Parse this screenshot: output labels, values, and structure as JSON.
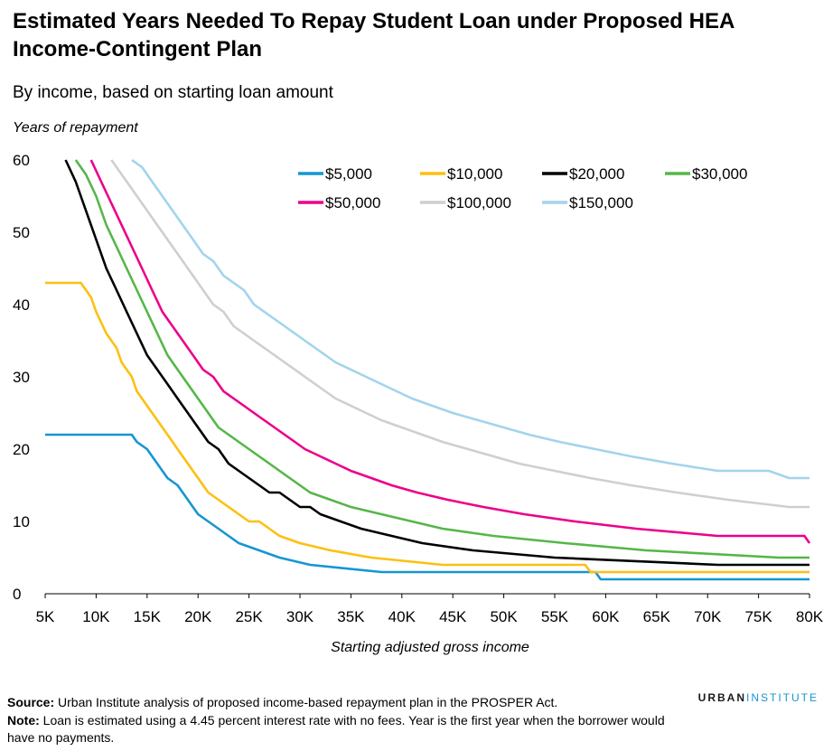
{
  "header": {
    "title": "Estimated Years Needed To Repay Student Loan under Proposed HEA Income-Contingent Plan",
    "subtitle": "By income, based on starting loan amount"
  },
  "footer": {
    "source_label": "Source:",
    "source_text": " Urban Institute analysis of proposed income-based repayment plan in the PROSPER Act.",
    "note_label": "Note:",
    "note_text": " Loan is estimated using a 4.45 percent interest rate with no fees. Year is the first year when the borrower would have no payments.",
    "brand_part1": "URBAN",
    "brand_part2": "INSTITUTE"
  },
  "chart_data": {
    "type": "line",
    "title": "Estimated Years Needed To Repay Student Loan under Proposed HEA Income-Contingent Plan",
    "subtitle": "By income, based on starting loan amount",
    "xlabel": "Starting adjusted gross income",
    "ylabel": "Years of repayment",
    "xlim": [
      5000,
      80000
    ],
    "ylim": [
      0,
      60
    ],
    "x_ticks": [
      5000,
      10000,
      15000,
      20000,
      25000,
      30000,
      35000,
      40000,
      45000,
      50000,
      55000,
      60000,
      65000,
      70000,
      75000,
      80000
    ],
    "x_tick_labels": [
      "5K",
      "10K",
      "15K",
      "20K",
      "25K",
      "30K",
      "35K",
      "40K",
      "45K",
      "50K",
      "55K",
      "60K",
      "65K",
      "70K",
      "75K",
      "80K"
    ],
    "y_ticks": [
      0,
      10,
      20,
      30,
      40,
      50,
      60
    ],
    "y_tick_labels": [
      "0",
      "10",
      "20",
      "30",
      "40",
      "50",
      "60"
    ],
    "grid": false,
    "legend_position": "top-right",
    "series": [
      {
        "name": "$5,000",
        "color": "#1696d2",
        "points": [
          [
            5000,
            22
          ],
          [
            13500,
            22
          ],
          [
            14000,
            21
          ],
          [
            15000,
            20
          ],
          [
            16000,
            18
          ],
          [
            17000,
            16
          ],
          [
            18000,
            15
          ],
          [
            19000,
            13
          ],
          [
            20000,
            11
          ],
          [
            21000,
            10
          ],
          [
            22000,
            9
          ],
          [
            23000,
            8
          ],
          [
            24000,
            7
          ],
          [
            26000,
            6
          ],
          [
            28000,
            5
          ],
          [
            31000,
            4
          ],
          [
            38000,
            3
          ],
          [
            59000,
            3
          ],
          [
            59500,
            2
          ],
          [
            80000,
            2
          ]
        ]
      },
      {
        "name": "$10,000",
        "color": "#fdbf11",
        "points": [
          [
            5000,
            43
          ],
          [
            8500,
            43
          ],
          [
            9500,
            41
          ],
          [
            10000,
            39
          ],
          [
            11000,
            36
          ],
          [
            12000,
            34
          ],
          [
            12500,
            32
          ],
          [
            13500,
            30
          ],
          [
            14000,
            28
          ],
          [
            15000,
            26
          ],
          [
            16000,
            24
          ],
          [
            17000,
            22
          ],
          [
            18000,
            20
          ],
          [
            19000,
            18
          ],
          [
            20000,
            16
          ],
          [
            21000,
            14
          ],
          [
            22000,
            13
          ],
          [
            23000,
            12
          ],
          [
            24000,
            11
          ],
          [
            25000,
            10
          ],
          [
            26000,
            10
          ],
          [
            27000,
            9
          ],
          [
            28000,
            8
          ],
          [
            30000,
            7
          ],
          [
            33000,
            6
          ],
          [
            37000,
            5
          ],
          [
            44000,
            4
          ],
          [
            58000,
            4
          ],
          [
            58500,
            3
          ],
          [
            80000,
            3
          ]
        ]
      },
      {
        "name": "$20,000",
        "color": "#000000",
        "points": [
          [
            7000,
            60
          ],
          [
            8000,
            57
          ],
          [
            9000,
            53
          ],
          [
            10000,
            49
          ],
          [
            11000,
            45
          ],
          [
            12000,
            42
          ],
          [
            13000,
            39
          ],
          [
            14000,
            36
          ],
          [
            15000,
            33
          ],
          [
            16000,
            31
          ],
          [
            17000,
            29
          ],
          [
            18000,
            27
          ],
          [
            19000,
            25
          ],
          [
            20000,
            23
          ],
          [
            21000,
            21
          ],
          [
            22000,
            20
          ],
          [
            23000,
            18
          ],
          [
            24000,
            17
          ],
          [
            25000,
            16
          ],
          [
            26000,
            15
          ],
          [
            27000,
            14
          ],
          [
            28000,
            14
          ],
          [
            29000,
            13
          ],
          [
            30000,
            12
          ],
          [
            31000,
            12
          ],
          [
            32000,
            11
          ],
          [
            34000,
            10
          ],
          [
            36000,
            9
          ],
          [
            39000,
            8
          ],
          [
            42000,
            7
          ],
          [
            47000,
            6
          ],
          [
            55000,
            5
          ],
          [
            71000,
            4
          ],
          [
            80000,
            4
          ]
        ]
      },
      {
        "name": "$30,000",
        "color": "#55b748",
        "points": [
          [
            8000,
            60
          ],
          [
            9000,
            58
          ],
          [
            10000,
            55
          ],
          [
            11000,
            51
          ],
          [
            12000,
            48
          ],
          [
            13000,
            45
          ],
          [
            14000,
            42
          ],
          [
            15000,
            39
          ],
          [
            16000,
            36
          ],
          [
            17000,
            33
          ],
          [
            18000,
            31
          ],
          [
            19000,
            29
          ],
          [
            20000,
            27
          ],
          [
            21000,
            25
          ],
          [
            22000,
            23
          ],
          [
            23000,
            22
          ],
          [
            24000,
            21
          ],
          [
            25000,
            20
          ],
          [
            26000,
            19
          ],
          [
            27000,
            18
          ],
          [
            28000,
            17
          ],
          [
            29000,
            16
          ],
          [
            30000,
            15
          ],
          [
            31000,
            14
          ],
          [
            33000,
            13
          ],
          [
            35000,
            12
          ],
          [
            38000,
            11
          ],
          [
            41000,
            10
          ],
          [
            44000,
            9
          ],
          [
            49000,
            8
          ],
          [
            56000,
            7
          ],
          [
            64000,
            6
          ],
          [
            77000,
            5
          ],
          [
            80000,
            5
          ]
        ]
      },
      {
        "name": "$50,000",
        "color": "#ec008b",
        "points": [
          [
            9500,
            60
          ],
          [
            10500,
            57
          ],
          [
            11500,
            54
          ],
          [
            12500,
            51
          ],
          [
            13500,
            48
          ],
          [
            14500,
            45
          ],
          [
            15500,
            42
          ],
          [
            16500,
            39
          ],
          [
            17500,
            37
          ],
          [
            18500,
            35
          ],
          [
            19500,
            33
          ],
          [
            20500,
            31
          ],
          [
            21500,
            30
          ],
          [
            22500,
            28
          ],
          [
            23500,
            27
          ],
          [
            24500,
            26
          ],
          [
            25500,
            25
          ],
          [
            26500,
            24
          ],
          [
            27500,
            23
          ],
          [
            28500,
            22
          ],
          [
            29500,
            21
          ],
          [
            30500,
            20
          ],
          [
            32000,
            19
          ],
          [
            33500,
            18
          ],
          [
            35000,
            17
          ],
          [
            37000,
            16
          ],
          [
            39000,
            15
          ],
          [
            41500,
            14
          ],
          [
            44500,
            13
          ],
          [
            48000,
            12
          ],
          [
            52000,
            11
          ],
          [
            57000,
            10
          ],
          [
            63000,
            9
          ],
          [
            71000,
            8
          ],
          [
            79500,
            8
          ],
          [
            80000,
            7
          ]
        ]
      },
      {
        "name": "$100,000",
        "color": "#cfcfcf",
        "points": [
          [
            11500,
            60
          ],
          [
            12500,
            58
          ],
          [
            13500,
            56
          ],
          [
            14500,
            54
          ],
          [
            15500,
            52
          ],
          [
            16500,
            50
          ],
          [
            17500,
            48
          ],
          [
            18500,
            46
          ],
          [
            19500,
            44
          ],
          [
            20500,
            42
          ],
          [
            21500,
            40
          ],
          [
            22500,
            39
          ],
          [
            23500,
            37
          ],
          [
            24500,
            36
          ],
          [
            25500,
            35
          ],
          [
            26500,
            34
          ],
          [
            27500,
            33
          ],
          [
            28500,
            32
          ],
          [
            29500,
            31
          ],
          [
            30500,
            30
          ],
          [
            31500,
            29
          ],
          [
            32500,
            28
          ],
          [
            33500,
            27
          ],
          [
            35000,
            26
          ],
          [
            36500,
            25
          ],
          [
            38000,
            24
          ],
          [
            40000,
            23
          ],
          [
            42000,
            22
          ],
          [
            44000,
            21
          ],
          [
            46500,
            20
          ],
          [
            49000,
            19
          ],
          [
            51500,
            18
          ],
          [
            55000,
            17
          ],
          [
            58500,
            16
          ],
          [
            62500,
            15
          ],
          [
            67000,
            14
          ],
          [
            72000,
            13
          ],
          [
            78000,
            12
          ],
          [
            80000,
            12
          ]
        ]
      },
      {
        "name": "$150,000",
        "color": "#a2d4ec",
        "points": [
          [
            13500,
            60
          ],
          [
            14500,
            59
          ],
          [
            15500,
            57
          ],
          [
            16500,
            55
          ],
          [
            17500,
            53
          ],
          [
            18500,
            51
          ],
          [
            19500,
            49
          ],
          [
            20500,
            47
          ],
          [
            21500,
            46
          ],
          [
            22500,
            44
          ],
          [
            23500,
            43
          ],
          [
            24500,
            42
          ],
          [
            25500,
            40
          ],
          [
            26500,
            39
          ],
          [
            27500,
            38
          ],
          [
            28500,
            37
          ],
          [
            29500,
            36
          ],
          [
            30500,
            35
          ],
          [
            31500,
            34
          ],
          [
            32500,
            33
          ],
          [
            33500,
            32
          ],
          [
            35000,
            31
          ],
          [
            36500,
            30
          ],
          [
            38000,
            29
          ],
          [
            39500,
            28
          ],
          [
            41000,
            27
          ],
          [
            43000,
            26
          ],
          [
            45000,
            25
          ],
          [
            47500,
            24
          ],
          [
            50000,
            23
          ],
          [
            52500,
            22
          ],
          [
            55500,
            21
          ],
          [
            59000,
            20
          ],
          [
            62500,
            19
          ],
          [
            66500,
            18
          ],
          [
            71000,
            17
          ],
          [
            75500,
            17
          ],
          [
            76000,
            17
          ],
          [
            78000,
            16
          ],
          [
            80000,
            16
          ]
        ]
      }
    ]
  }
}
